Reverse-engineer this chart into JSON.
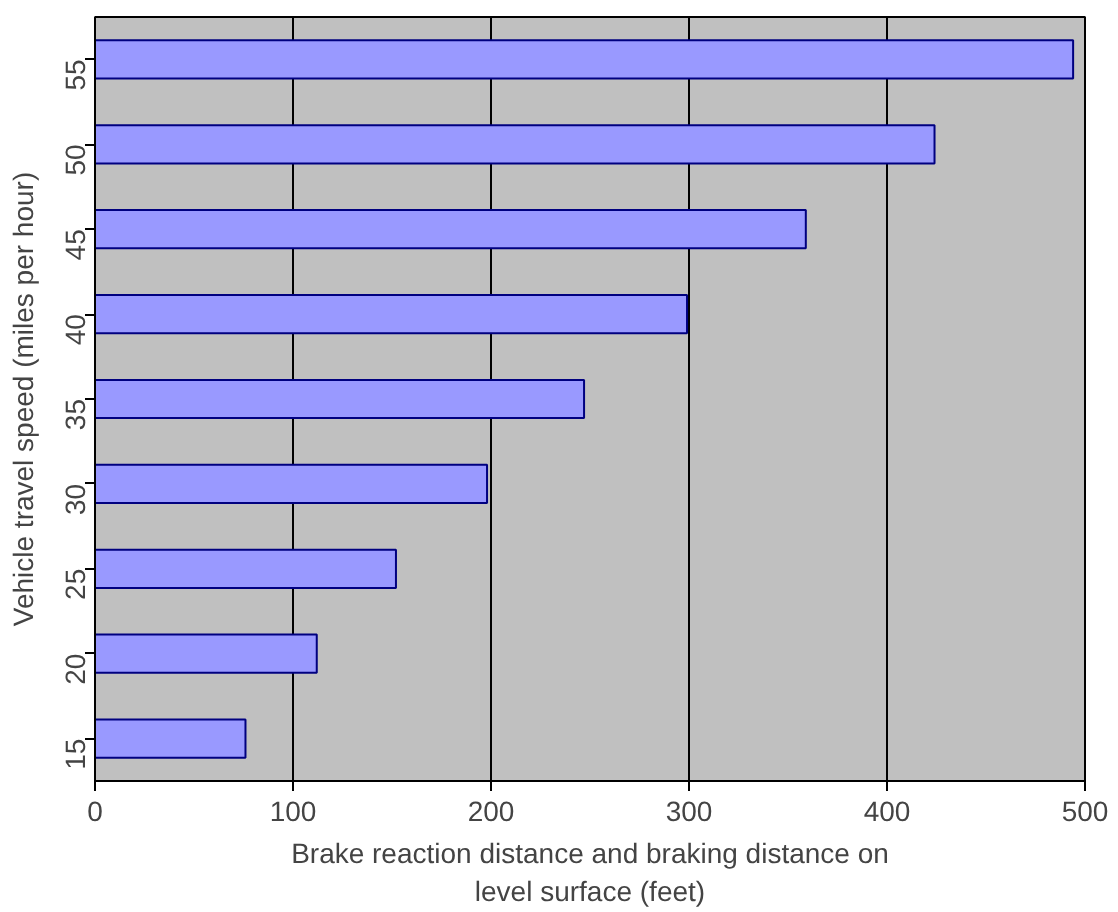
{
  "chart_data": {
    "type": "bar",
    "orientation": "horizontal",
    "xlabel": "Brake reaction distance and braking distance on level surface (feet)",
    "ylabel": "Vehicle travel speed (miles per hour)",
    "categories": [
      "55",
      "50",
      "45",
      "40",
      "35",
      "30",
      "25",
      "20",
      "15"
    ],
    "series": [
      {
        "color": "#9999ff",
        "values": [
          494,
          424,
          359,
          299,
          247,
          198,
          152,
          112,
          76
        ]
      }
    ],
    "xlim": [
      0,
      500
    ],
    "xticks": [
      0,
      100,
      200,
      300,
      400,
      500
    ],
    "grid": "x"
  }
}
